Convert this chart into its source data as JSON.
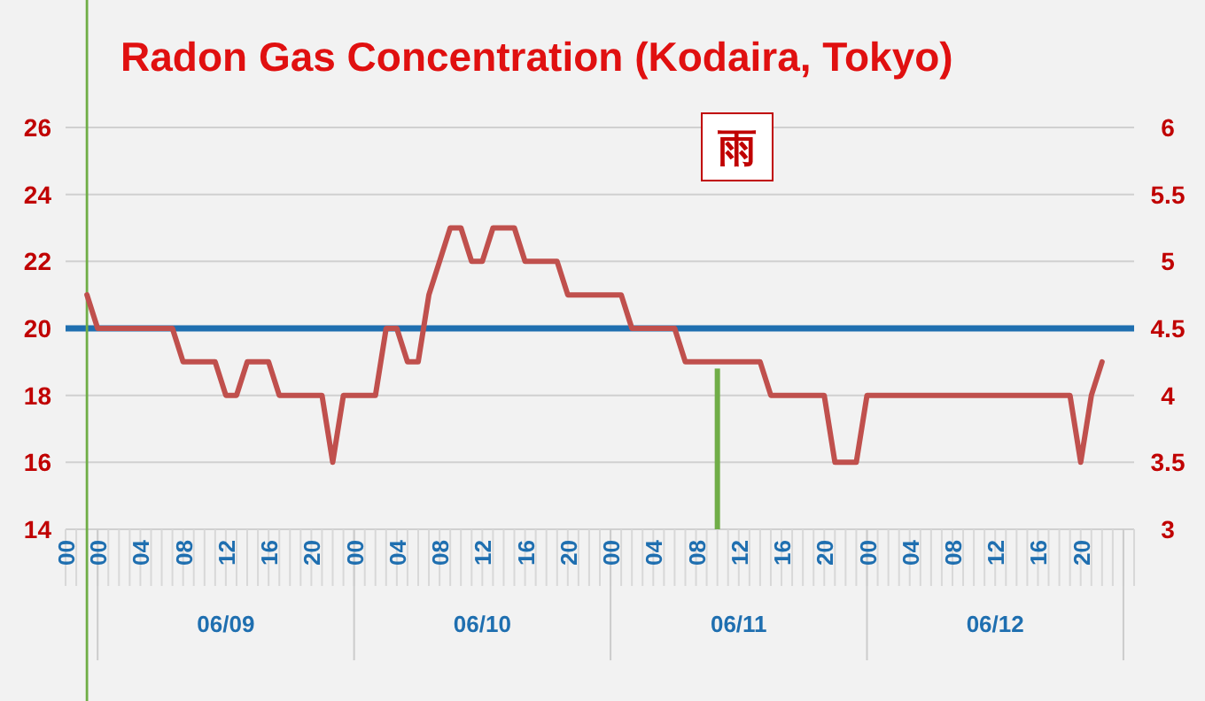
{
  "chart_data": {
    "type": "line",
    "title": "Radon Gas Concentration (Kodaira, Tokyo)",
    "annotations": [
      "雨"
    ],
    "x": [
      "--06-08T23:00",
      "--06-09T00:00",
      "--06-09T07:00",
      "--06-09T08:00",
      "--06-09T11:00",
      "--06-09T12:00",
      "--06-09T13:00",
      "--06-09T14:00",
      "--06-09T16:00",
      "--06-09T17:00",
      "--06-09T21:00",
      "--06-09T22:00",
      "--06-09T23:00",
      "--06-10T02:00",
      "--06-10T03:00",
      "--06-10T04:00",
      "--06-10T05:00",
      "--06-10T06:00",
      "--06-10T07:00",
      "--06-10T08:00",
      "--06-10T09:00",
      "--06-10T10:00",
      "--06-10T11:00",
      "--06-10T12:00",
      "--06-10T13:00",
      "--06-10T15:00",
      "--06-10T16:00",
      "--06-10T19:00",
      "--06-10T20:00",
      "--06-11T01:00",
      "--06-11T02:00",
      "--06-11T06:00",
      "--06-11T07:00",
      "--06-11T14:00",
      "--06-11T15:00",
      "--06-11T20:00",
      "--06-11T21:00",
      "--06-11T23:00",
      "--06-12T00:00",
      "--06-12T19:00",
      "--06-12T20:00",
      "--06-12T21:00",
      "--06-12T22:00"
    ],
    "series": [
      {
        "color": "#c0504d",
        "values": [
          21,
          20,
          20,
          19,
          19,
          18,
          18,
          19,
          19,
          18,
          18,
          16,
          18,
          18,
          20,
          20,
          19,
          19,
          21,
          22,
          23,
          23,
          22,
          22,
          23,
          23,
          22,
          22,
          21,
          21,
          20,
          20,
          19,
          19,
          18,
          18,
          16,
          16,
          18,
          18,
          16,
          18,
          19
        ]
      },
      {
        "type": "bar",
        "color": "#70ad47",
        "x": [
          "--06-11T10:00"
        ],
        "values": [
          18.8
        ]
      }
    ],
    "xlim": [
      "--06-08T21:00",
      "--06-13T01:00"
    ],
    "xticks": [
      {
        "value": "--06-08T21:00",
        "label": "00"
      },
      {
        "value": "--06-09T00:00",
        "label": "00"
      },
      {
        "value": "--06-09T04:00",
        "label": "04"
      },
      {
        "value": "--06-09T08:00",
        "label": "08"
      },
      {
        "value": "--06-09T12:00",
        "label": "12"
      },
      {
        "value": "--06-09T16:00",
        "label": "16"
      },
      {
        "value": "--06-09T20:00",
        "label": "20"
      },
      {
        "value": "--06-10T00:00",
        "label": "00"
      },
      {
        "value": "--06-10T04:00",
        "label": "04"
      },
      {
        "value": "--06-10T08:00",
        "label": "08"
      },
      {
        "value": "--06-10T12:00",
        "label": "12"
      },
      {
        "value": "--06-10T16:00",
        "label": "16"
      },
      {
        "value": "--06-10T20:00",
        "label": "20"
      },
      {
        "value": "--06-11T00:00",
        "label": "00"
      },
      {
        "value": "--06-11T04:00",
        "label": "04"
      },
      {
        "value": "--06-11T08:00",
        "label": "08"
      },
      {
        "value": "--06-11T12:00",
        "label": "12"
      },
      {
        "value": "--06-11T16:00",
        "label": "16"
      },
      {
        "value": "--06-11T20:00",
        "label": "20"
      },
      {
        "value": "--06-12T00:00",
        "label": "00"
      },
      {
        "value": "--06-12T04:00",
        "label": "04"
      },
      {
        "value": "--06-12T08:00",
        "label": "08"
      },
      {
        "value": "--06-12T12:00",
        "label": "12"
      },
      {
        "value": "--06-12T16:00",
        "label": "16"
      },
      {
        "value": "--06-12T20:00",
        "label": "20"
      }
    ],
    "x2lim": [
      "--06-08T21:00",
      "--06-13T01:00"
    ],
    "x2ticks": [
      {
        "value": "--06-09T12:00",
        "label": "06/09"
      },
      {
        "value": "--06-10T12:00",
        "label": "06/10"
      },
      {
        "value": "--06-11T12:00",
        "label": "06/11"
      },
      {
        "value": "--06-12T12:00",
        "label": "06/12"
      }
    ],
    "ylim": [
      14,
      26
    ],
    "yticks": [
      14,
      16,
      18,
      20,
      22,
      24,
      26
    ],
    "y2lim": [
      3,
      6
    ],
    "y2ticks": [
      3,
      3.5,
      4,
      4.5,
      5,
      5.5,
      6
    ],
    "ref_lines": [
      {
        "axis": "y",
        "value": 20,
        "color": "#1f6fb0"
      },
      {
        "axis": "x",
        "value": "--06-08T23:00",
        "color": "#70ad47"
      }
    ],
    "grid": "y"
  }
}
